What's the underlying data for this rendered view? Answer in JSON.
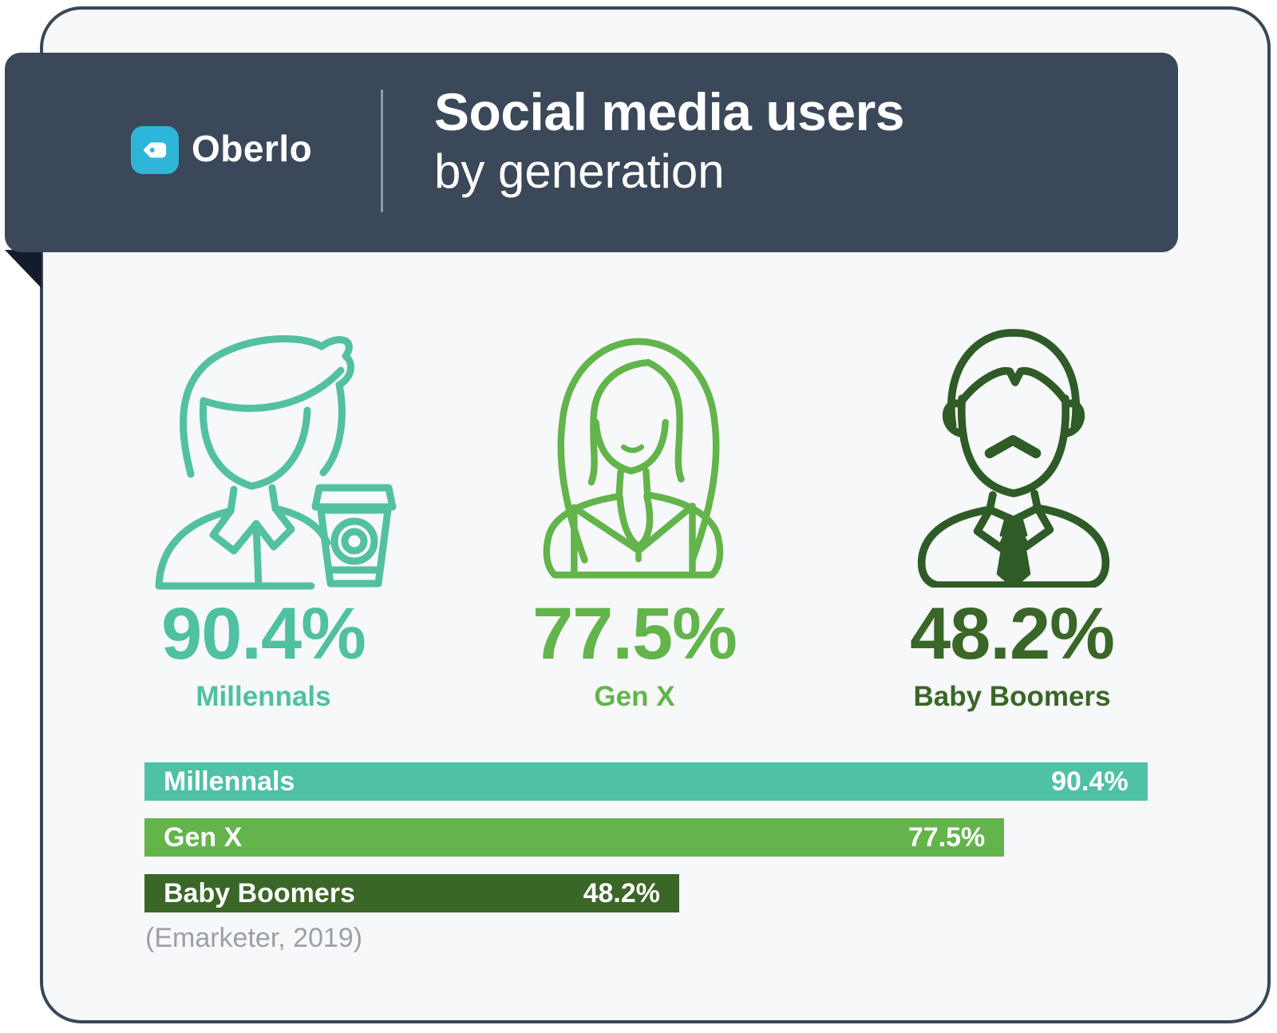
{
  "page": {
    "brand": "Oberlo",
    "title_line1": "Social media users",
    "title_line2": "by generation",
    "source": "(Emarketer, 2019)"
  },
  "stats": [
    {
      "value": "90.4%",
      "label": "Millennals",
      "icon": "millennial-with-coffee-icon"
    },
    {
      "value": "77.5%",
      "label": "Gen X",
      "icon": "genx-woman-icon"
    },
    {
      "value": "48.2%",
      "label": "Baby Boomers",
      "icon": "baby-boomer-man-icon"
    }
  ],
  "chart_data": {
    "type": "bar",
    "orientation": "horizontal",
    "title": "Social media users by generation",
    "categories": [
      "Millennals",
      "Gen X",
      "Baby Boomers"
    ],
    "values": [
      90.4,
      77.5,
      48.2
    ],
    "value_labels": [
      "90.4%",
      "77.5%",
      "48.2%"
    ],
    "bar_colors": [
      "#4FC1A4",
      "#63B44B",
      "#3A6627"
    ],
    "xlim": [
      0,
      100
    ],
    "grid": false,
    "legend": "none",
    "value_label_position": "inside-end",
    "source": "(Emarketer, 2019)"
  },
  "colors": {
    "header_bg": "#3B4859",
    "card_bg": "#F7F8FA",
    "card_border": "#39465A",
    "ribbon_fold": "#141C2B",
    "logo_blue": "#2EB6D9",
    "teal": "#4FC0A2",
    "green": "#63B44B",
    "dark_green": "#3A6627",
    "source_gray": "#9AA0A6",
    "text_white": "#FFFFFF"
  }
}
